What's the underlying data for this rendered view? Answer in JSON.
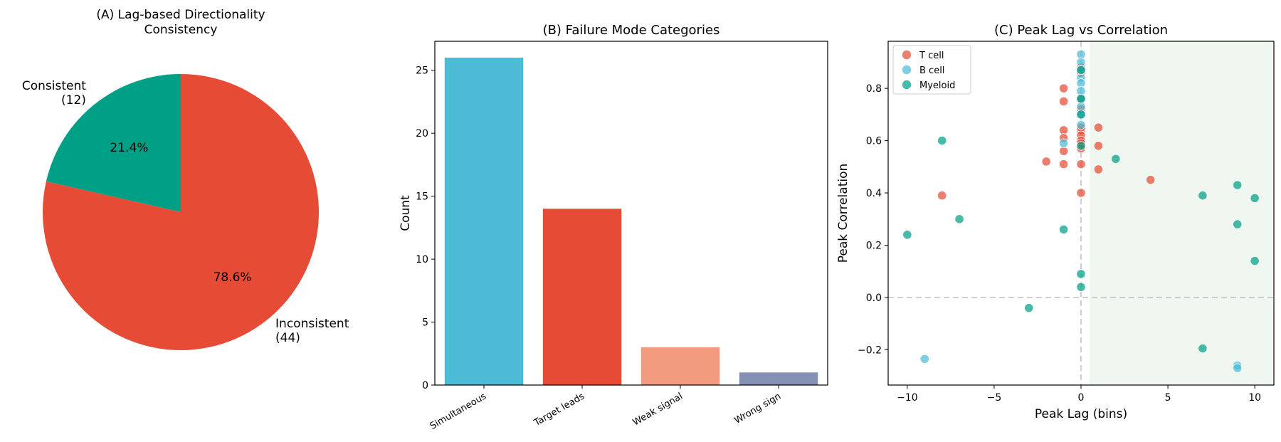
{
  "chart_data": [
    {
      "type": "pie",
      "title": "(A) Lag-based Directionality\nConsistency",
      "slices": [
        {
          "label": "Consistent\n(12)",
          "value": 12,
          "pct_label": "21.4%",
          "color": "#00a087"
        },
        {
          "label": "Inconsistent\n(44)",
          "value": 44,
          "pct_label": "78.6%",
          "color": "#e64b35"
        }
      ]
    },
    {
      "type": "bar",
      "title": "(B) Failure Mode Categories",
      "xlabel": "",
      "ylabel": "Count",
      "categories": [
        "Simultaneous",
        "Target leads",
        "Weak signal",
        "Wrong sign"
      ],
      "values": [
        26,
        14,
        3,
        1
      ],
      "colors": [
        "#4dbbd5",
        "#e64b35",
        "#f39b7f",
        "#8491b4"
      ],
      "ylim": [
        0,
        27.3
      ],
      "yticks": [
        0,
        5,
        10,
        15,
        20,
        25
      ]
    },
    {
      "type": "scatter",
      "title": "(C) Peak Lag vs Correlation",
      "xlabel": "Peak Lag (bins)",
      "ylabel": "Peak Correlation",
      "xlim": [
        -11.1,
        11.1
      ],
      "ylim": [
        -0.335,
        0.98
      ],
      "xticks": [
        -10,
        -5,
        0,
        5,
        10
      ],
      "yticks": [
        -0.2,
        0.0,
        0.2,
        0.4,
        0.6,
        0.8
      ],
      "ytick_labels": [
        "−0.2",
        "0.0",
        "0.2",
        "0.4",
        "0.6",
        "0.8"
      ],
      "xtick_labels": [
        "−10",
        "−5",
        "0",
        "5",
        "10"
      ],
      "shaded_region": [
        0.5,
        11
      ],
      "reference_lines": {
        "x": 0,
        "y": 0
      },
      "legend_position": "top-left",
      "series": [
        {
          "name": "T cell",
          "color": "#e64b35",
          "points": [
            [
              -1,
              0.8
            ],
            [
              -1,
              0.75
            ],
            [
              -1,
              0.64
            ],
            [
              -1,
              0.61
            ],
            [
              -1,
              0.56
            ],
            [
              -1,
              0.51
            ],
            [
              -2,
              0.52
            ],
            [
              -8,
              0.39
            ],
            [
              0,
              0.64
            ],
            [
              0,
              0.65
            ],
            [
              0,
              0.62
            ],
            [
              0,
              0.6
            ],
            [
              0,
              0.59
            ],
            [
              0,
              0.57
            ],
            [
              0,
              0.51
            ],
            [
              0,
              0.4
            ],
            [
              0,
              0.72
            ],
            [
              0,
              0.76
            ],
            [
              0,
              0.86
            ],
            [
              0,
              0.88
            ],
            [
              1,
              0.65
            ],
            [
              1,
              0.58
            ],
            [
              1,
              0.49
            ],
            [
              4,
              0.45
            ]
          ]
        },
        {
          "name": "B cell",
          "color": "#4dbbd5",
          "points": [
            [
              0,
              0.93
            ],
            [
              0,
              0.9
            ],
            [
              0,
              0.87
            ],
            [
              0,
              0.84
            ],
            [
              0,
              0.82
            ],
            [
              0,
              0.79
            ],
            [
              0,
              0.76
            ],
            [
              0,
              0.73
            ],
            [
              0,
              0.7
            ],
            [
              0,
              0.66
            ],
            [
              -1,
              0.59
            ],
            [
              -9,
              -0.235
            ],
            [
              9,
              -0.26
            ],
            [
              9,
              -0.27
            ]
          ]
        },
        {
          "name": "Myeloid",
          "color": "#00a087",
          "points": [
            [
              0,
              0.87
            ],
            [
              0,
              0.76
            ],
            [
              0,
              0.7
            ],
            [
              0,
              0.58
            ],
            [
              0,
              0.09
            ],
            [
              0,
              0.04
            ],
            [
              -1,
              0.26
            ],
            [
              -8,
              0.6
            ],
            [
              -7,
              0.3
            ],
            [
              -10,
              0.24
            ],
            [
              -3,
              -0.04
            ],
            [
              2,
              0.53
            ],
            [
              7,
              0.39
            ],
            [
              7,
              -0.195
            ],
            [
              9,
              0.43
            ],
            [
              9,
              0.28
            ],
            [
              10,
              0.38
            ],
            [
              10,
              0.14
            ]
          ]
        }
      ]
    }
  ]
}
